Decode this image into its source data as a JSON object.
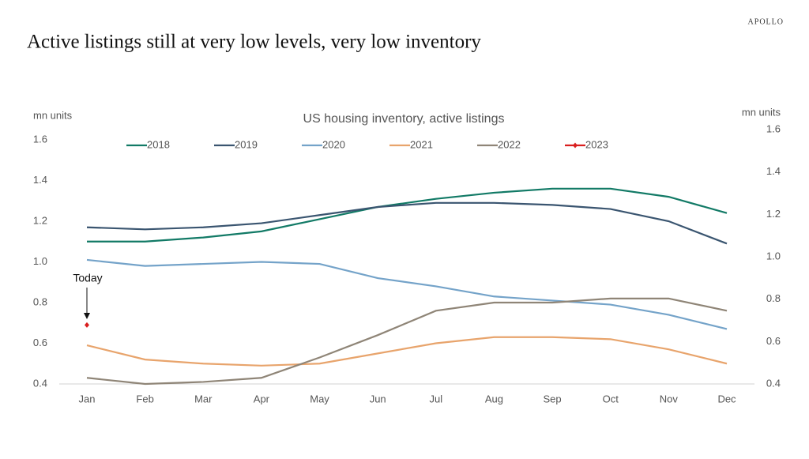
{
  "brand": "APOLLO",
  "chart_data": {
    "type": "line",
    "title": "Active listings still at very low levels, very low inventory",
    "subtitle": "US housing inventory, active listings",
    "y_label": "mn units",
    "y2_label": "mn units",
    "annotation": "Today",
    "categories": [
      "Jan",
      "Feb",
      "Mar",
      "Apr",
      "May",
      "Jun",
      "Jul",
      "Aug",
      "Sep",
      "Oct",
      "Nov",
      "Dec"
    ],
    "ylim": [
      0.4,
      1.6
    ],
    "yticks": [
      0.4,
      0.6,
      0.8,
      {
        "value": 1,
        "label": "1.0"
      },
      1.2,
      1.4,
      1.6
    ],
    "y2lim": [
      0.4,
      1.6
    ],
    "y2ticks": [
      0.4,
      0.6,
      0.8,
      {
        "value": 1,
        "label": "1.0"
      },
      1.2,
      1.4,
      1.6
    ],
    "series": [
      {
        "name": "2018",
        "color": "#127a66",
        "values": [
          1.1,
          1.1,
          1.12,
          1.15,
          1.21,
          1.27,
          1.31,
          1.34,
          1.36,
          1.36,
          1.32,
          1.24
        ]
      },
      {
        "name": "2019",
        "color": "#3a5570",
        "values": [
          1.17,
          1.16,
          1.17,
          1.19,
          1.23,
          1.27,
          1.29,
          1.29,
          1.28,
          1.26,
          1.2,
          1.09
        ]
      },
      {
        "name": "2020",
        "color": "#74a3c9",
        "values": [
          1.01,
          0.98,
          0.99,
          1.0,
          0.99,
          0.92,
          0.88,
          0.83,
          0.81,
          0.79,
          0.74,
          0.67
        ]
      },
      {
        "name": "2021",
        "color": "#e8a46c",
        "values": [
          0.59,
          0.52,
          0.5,
          0.49,
          0.5,
          0.55,
          0.6,
          0.63,
          0.63,
          0.62,
          0.57,
          0.5
        ]
      },
      {
        "name": "2022",
        "color": "#8f8577",
        "values": [
          0.43,
          0.4,
          0.41,
          0.43,
          0.53,
          0.64,
          0.76,
          0.8,
          0.8,
          0.82,
          0.82,
          0.76
        ]
      },
      {
        "name": "2023",
        "color": "#d91f1f",
        "marker": "diamond",
        "values": [
          0.69,
          null,
          null,
          null,
          null,
          null,
          null,
          null,
          null,
          null,
          null,
          null
        ]
      }
    ]
  }
}
